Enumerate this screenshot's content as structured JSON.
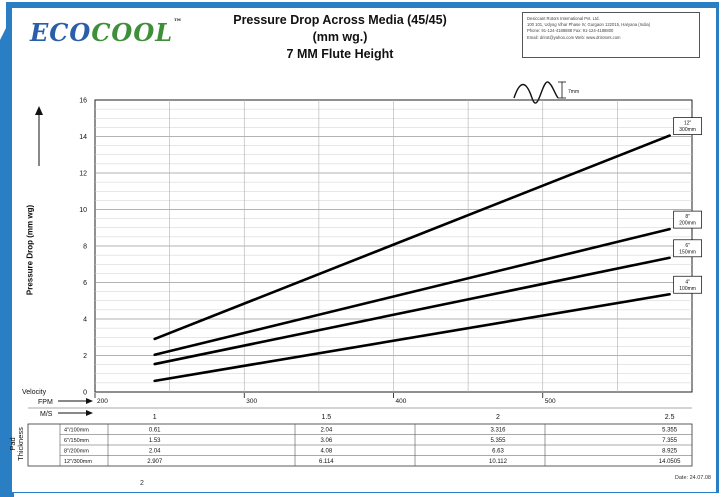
{
  "colors": {
    "border_blue": "#2a7fc4",
    "logo_blue": "#2a5ea8",
    "logo_green": "#3f8f3a",
    "line": "#000000",
    "grid": "#cfcfcf"
  },
  "logo": {
    "part1": "ECO",
    "part2": "COOL",
    "tm": "™"
  },
  "title": {
    "line1": "Pressure Drop Across Media (45/45)",
    "line2": "(mm wg.)",
    "line3": "7 MM Flute Height"
  },
  "address": {
    "line1": "Desiccant Rotors International Pvt. Ltd.",
    "line2": "100 101, Udyog Vihar Phase IV, Gurgaon 122015, Haryana (India)",
    "line3": "Phone: 91-124-4188888 Fax: 91-124-4188800",
    "line4": "Email: drirot@yahoo.com Web: www.drirotors.com"
  },
  "flute_label": "7mm",
  "footer": {
    "date": "Date: 24.07.08",
    "page": "2"
  },
  "chart_data": {
    "type": "line",
    "title": "Pressure Drop Across Media (45/45)",
    "ylabel": "Pressure Drop (mm wg)",
    "xlabel": "Velocity",
    "xlim": [
      200,
      600
    ],
    "ylim": [
      0,
      16
    ],
    "y_ticks": [
      0,
      2,
      4,
      6,
      8,
      10,
      12,
      14,
      16
    ],
    "fpm_ticks": [
      200,
      300,
      400,
      500
    ],
    "ms_ticks": [
      "1",
      "1.5",
      "2",
      "2.5"
    ],
    "x_label_fpm": "FPM",
    "x_label_ms": "M/S",
    "x_fpm": [
      240,
      585
    ],
    "series": [
      {
        "name": "12\" 300mm",
        "label_line1": "12\"",
        "label_line2": "300mm",
        "values": [
          2.907,
          14.0505
        ]
      },
      {
        "name": "8\" 200mm",
        "label_line1": "8\"",
        "label_line2": "200mm",
        "values": [
          2.04,
          8.925
        ]
      },
      {
        "name": "6\" 150mm",
        "label_line1": "6\"",
        "label_line2": "150mm",
        "values": [
          1.53,
          7.355
        ]
      },
      {
        "name": "4\" 100mm",
        "label_line1": "4\"",
        "label_line2": "100mm",
        "values": [
          0.61,
          5.355
        ]
      }
    ]
  },
  "table": {
    "velocity_label": "Velocity",
    "pad_label_line1": "Pad",
    "pad_label_line2": "Thickness",
    "rows": [
      {
        "label": "4\"/100mm",
        "values": [
          "0.61",
          "2.04",
          "3.316",
          "5.355"
        ]
      },
      {
        "label": "6\"/150mm",
        "values": [
          "1.53",
          "3.06",
          "5.355",
          "7.355"
        ]
      },
      {
        "label": "8\"/200mm",
        "values": [
          "2.04",
          "4.08",
          "6.63",
          "8.925"
        ]
      },
      {
        "label": "12\"/300mm",
        "values": [
          "2.907",
          "6.114",
          "10.112",
          "14.0505"
        ]
      }
    ]
  }
}
